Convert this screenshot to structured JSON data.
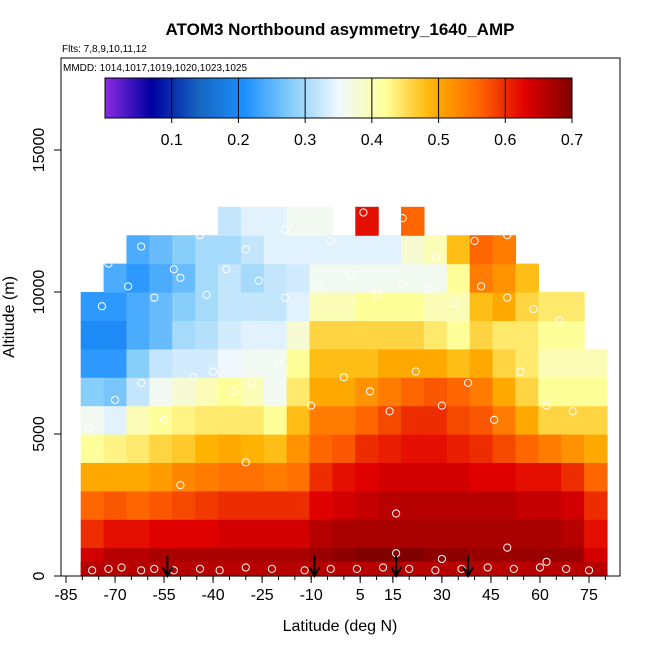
{
  "chart_data": {
    "type": "heatmap",
    "title": "ATOM3 Northbound asymmetry_1640_AMP",
    "annotations": {
      "flights": "Flts: 7,8,9,10,11,12",
      "dates": "MMDD: 1014,1017,1019,1020,1023,1025"
    },
    "xlabel": "Latitude (deg N)",
    "ylabel": "Altitude (m)",
    "xlim": [
      -85,
      85
    ],
    "ylim": [
      0,
      17600
    ],
    "x_ticks": [
      -85,
      -70,
      -55,
      -40,
      -25,
      -10,
      5,
      15,
      30,
      45,
      60,
      75
    ],
    "x_tick_labels": [
      "-85",
      "-70",
      "-55",
      "-40",
      "-25",
      "-10",
      "5",
      "15",
      "30",
      "45",
      "60",
      "75"
    ],
    "y_ticks": [
      0,
      5000,
      10000,
      15000
    ],
    "y_tick_labels": [
      "0",
      "5000",
      "10000",
      "15000"
    ],
    "colorbar": {
      "range": [
        0,
        0.7
      ],
      "ticks": [
        0.1,
        0.2,
        0.3,
        0.4,
        0.5,
        0.6,
        0.7
      ],
      "tick_labels": [
        "0.1",
        "0.2",
        "0.3",
        "0.4",
        "0.5",
        "0.6",
        "0.7"
      ],
      "colors": [
        "#8a2be2",
        "#0000a0",
        "#1565c0",
        "#1e90ff",
        "#87cefa",
        "#f0f8ff",
        "#ffff99",
        "#ffb300",
        "#ff6600",
        "#e00000",
        "#800000"
      ]
    },
    "profile_arrows_latitude": [
      -54,
      -9,
      16,
      38
    ],
    "bottom_row_z": 0.66,
    "grid": false,
    "z_grid_note": "values per latitude band (rows) x altitude band (cols), dimensionless 0-0.7",
    "lat_bins": [
      -77,
      -70,
      -63,
      -56,
      -49,
      -42,
      -35,
      -28,
      -21,
      -14,
      -7,
      0,
      7,
      14,
      21,
      28,
      35,
      42,
      49,
      56,
      63,
      70,
      77
    ],
    "alt_bins": [
      500,
      1500,
      2500,
      3500,
      4500,
      5500,
      6500,
      7500,
      8500,
      9500,
      10500,
      11500,
      12500
    ],
    "z": [
      [
        0.64,
        0.6,
        0.56,
        0.5,
        0.42,
        0.36,
        0.28,
        0.22,
        0.2,
        0.22,
        null,
        null,
        null
      ],
      [
        0.66,
        0.62,
        0.57,
        0.5,
        0.43,
        0.34,
        0.27,
        0.22,
        0.2,
        0.22,
        0.24,
        null,
        null
      ],
      [
        0.66,
        0.62,
        0.56,
        0.5,
        0.44,
        0.4,
        0.32,
        0.28,
        0.24,
        0.24,
        0.22,
        0.24,
        null
      ],
      [
        0.67,
        0.63,
        0.57,
        0.51,
        0.46,
        0.42,
        0.36,
        0.32,
        0.26,
        0.26,
        0.24,
        0.26,
        null
      ],
      [
        0.67,
        0.63,
        0.58,
        0.53,
        0.47,
        0.43,
        0.38,
        0.33,
        0.3,
        0.28,
        0.26,
        0.28,
        null
      ],
      [
        0.67,
        0.63,
        0.59,
        0.54,
        0.49,
        0.44,
        0.4,
        0.33,
        0.31,
        0.3,
        0.3,
        0.3,
        null
      ],
      [
        0.67,
        0.64,
        0.6,
        0.55,
        0.5,
        0.44,
        0.42,
        0.35,
        0.33,
        0.32,
        0.32,
        0.3,
        0.32
      ],
      [
        0.67,
        0.64,
        0.6,
        0.55,
        0.49,
        0.44,
        0.4,
        0.36,
        0.34,
        0.32,
        0.3,
        0.32,
        0.34
      ],
      [
        0.67,
        0.64,
        0.6,
        0.54,
        0.48,
        0.42,
        0.36,
        0.36,
        0.34,
        0.32,
        0.32,
        0.34,
        0.34
      ],
      [
        0.67,
        0.64,
        0.6,
        0.55,
        0.52,
        0.48,
        0.44,
        0.42,
        0.38,
        0.34,
        0.33,
        0.34,
        0.36
      ],
      [
        0.68,
        0.66,
        0.63,
        0.6,
        0.56,
        0.54,
        0.5,
        0.48,
        0.46,
        0.4,
        0.36,
        0.34,
        0.36
      ],
      [
        0.69,
        0.67,
        0.64,
        0.62,
        0.57,
        0.54,
        0.5,
        0.48,
        0.46,
        0.4,
        0.36,
        0.34,
        null
      ],
      [
        0.7,
        0.67,
        0.65,
        0.63,
        0.6,
        0.56,
        0.52,
        0.48,
        0.46,
        0.42,
        0.36,
        0.34,
        0.62
      ],
      [
        0.7,
        0.67,
        0.66,
        0.64,
        0.61,
        0.58,
        0.54,
        0.5,
        0.46,
        0.42,
        0.36,
        0.34,
        null
      ],
      [
        0.7,
        0.67,
        0.66,
        0.64,
        0.62,
        0.6,
        0.56,
        0.5,
        0.46,
        0.42,
        0.36,
        0.38,
        0.56
      ],
      [
        0.69,
        0.67,
        0.66,
        0.64,
        0.62,
        0.6,
        0.57,
        0.5,
        0.44,
        0.4,
        0.36,
        0.4,
        null
      ],
      [
        0.69,
        0.67,
        0.66,
        0.64,
        0.61,
        0.58,
        0.56,
        0.48,
        0.42,
        0.4,
        0.42,
        0.48,
        null
      ],
      [
        0.68,
        0.67,
        0.66,
        0.63,
        0.6,
        0.57,
        0.54,
        0.5,
        0.46,
        0.48,
        0.54,
        0.56,
        null
      ],
      [
        0.68,
        0.67,
        0.66,
        0.63,
        0.58,
        0.54,
        0.5,
        0.46,
        0.44,
        0.5,
        0.52,
        0.54,
        null
      ],
      [
        0.68,
        0.67,
        0.65,
        0.62,
        0.56,
        0.5,
        0.46,
        0.44,
        0.44,
        0.46,
        0.48,
        null,
        null
      ],
      [
        0.68,
        0.67,
        0.65,
        0.62,
        0.54,
        0.46,
        0.42,
        0.4,
        0.42,
        0.44,
        null,
        null,
        null
      ],
      [
        0.68,
        0.66,
        0.64,
        0.6,
        0.52,
        0.46,
        0.42,
        0.4,
        0.42,
        0.44,
        null,
        null,
        null
      ],
      [
        0.64,
        0.62,
        0.6,
        0.56,
        0.5,
        0.46,
        0.42,
        0.4,
        null,
        null,
        null,
        null,
        null
      ]
    ],
    "series": [
      {
        "name": "observations",
        "x": [
          -77,
          -72,
          -68,
          -62,
          -58,
          -52,
          -44,
          -38,
          -30,
          -22,
          -12,
          -4,
          4,
          12,
          20,
          28,
          36,
          44,
          52,
          60,
          68,
          75,
          -78,
          -70,
          -62,
          -55,
          -46,
          -40,
          -34,
          -28,
          -20,
          -10,
          0,
          8,
          14,
          22,
          30,
          38,
          46,
          54,
          62,
          70,
          -74,
          -66,
          -58,
          -50,
          -42,
          -36,
          -26,
          -18,
          -8,
          2,
          10,
          18,
          26,
          34,
          42,
          50,
          58,
          66,
          -72,
          -62,
          -52,
          -44,
          -30,
          -18,
          -4,
          6,
          18,
          28,
          40,
          50,
          60,
          70,
          16,
          -50,
          -30,
          16,
          30,
          50,
          62
        ],
        "y": [
          200,
          250,
          300,
          200,
          250,
          200,
          250,
          200,
          300,
          250,
          200,
          250,
          250,
          300,
          250,
          200,
          250,
          300,
          250,
          300,
          250,
          200,
          5200,
          6200,
          6800,
          5500,
          7000,
          7200,
          6500,
          6800,
          7500,
          6000,
          7000,
          6500,
          5800,
          7200,
          6000,
          6800,
          5500,
          7200,
          6000,
          5800,
          9500,
          10200,
          9800,
          10500,
          9900,
          10800,
          10400,
          9800,
          10200,
          10600,
          9900,
          10300,
          10100,
          9600,
          10200,
          9800,
          9400,
          9000,
          11000,
          11600,
          10800,
          12000,
          11500,
          12200,
          11800,
          12800,
          12600,
          11200,
          11800,
          12000,
          11600,
          10500,
          2200,
          3200,
          4000,
          800,
          600,
          1000,
          500
        ]
      }
    ]
  }
}
